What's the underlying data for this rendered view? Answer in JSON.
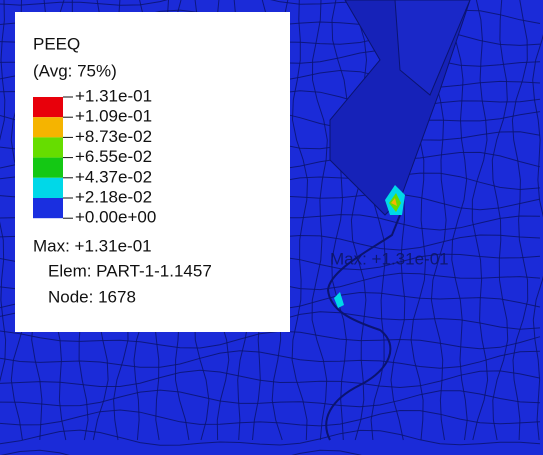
{
  "legend": {
    "title": "PEEQ",
    "subtitle": "(Avg: 75%)",
    "labels": [
      "+1.31e-01",
      "+1.09e-01",
      "+8.73e-02",
      "+6.55e-02",
      "+4.37e-02",
      "+2.18e-02",
      "+0.00e+00"
    ],
    "colors": [
      "#e8000b",
      "#f5b400",
      "#66dd00",
      "#14c814",
      "#00d8e8",
      "#1a2fe0"
    ],
    "max": "Max: +1.31e-01",
    "elem": "Elem: PART-1-1.1457",
    "node": "Node: 1678"
  },
  "annotation": "Max: +1.31e-01"
}
